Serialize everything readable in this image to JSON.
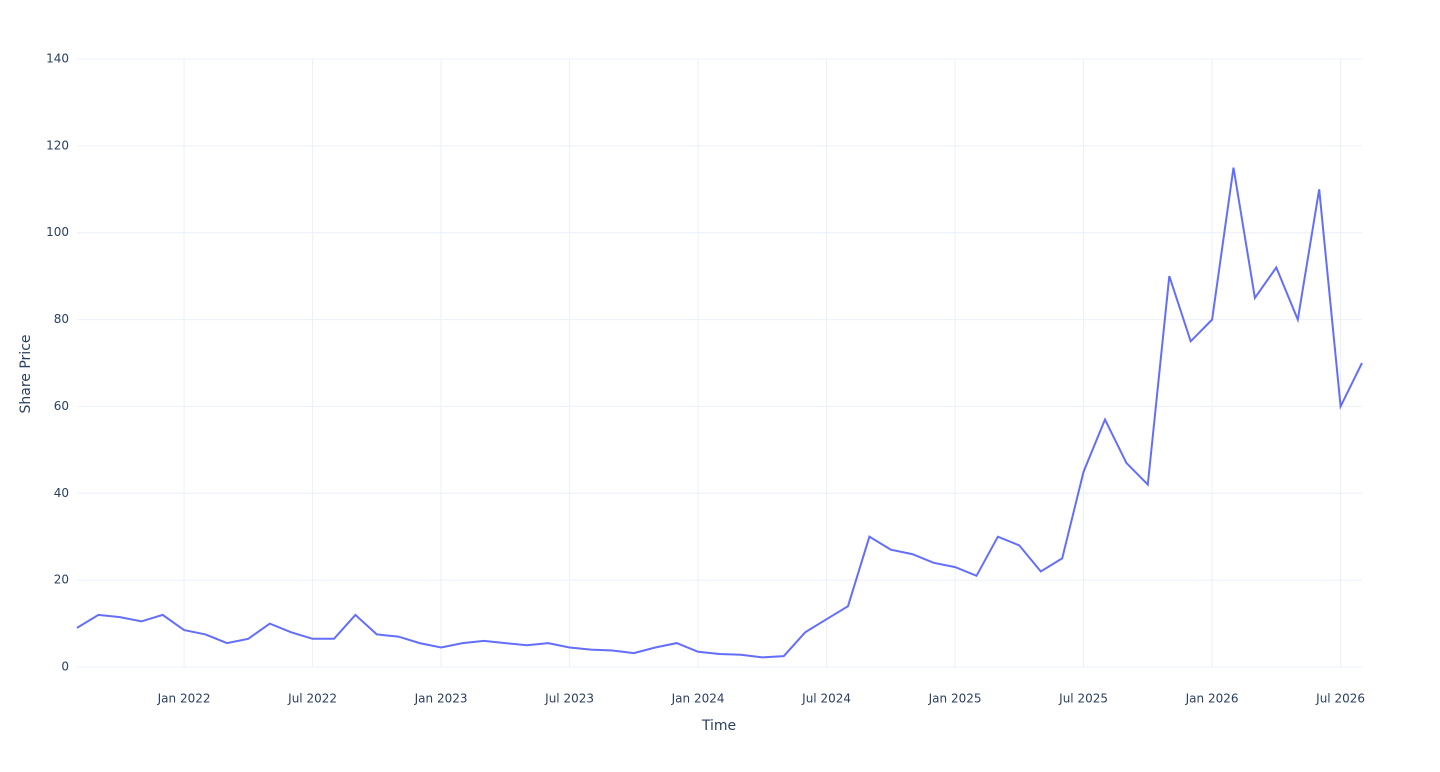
{
  "chart_data": {
    "type": "line",
    "x_label": "Time",
    "y_label": "Share Price",
    "x": [
      "2021-08",
      "2021-09",
      "2021-10",
      "2021-11",
      "2021-12",
      "2022-01",
      "2022-02",
      "2022-03",
      "2022-04",
      "2022-05",
      "2022-06",
      "2022-07",
      "2022-08",
      "2022-09",
      "2022-10",
      "2022-11",
      "2022-12",
      "2023-01",
      "2023-02",
      "2023-03",
      "2023-04",
      "2023-05",
      "2023-06",
      "2023-07",
      "2023-08",
      "2023-09",
      "2023-10",
      "2023-11",
      "2023-12",
      "2024-01",
      "2024-02",
      "2024-03",
      "2024-04",
      "2024-05",
      "2024-06",
      "2024-07",
      "2024-08",
      "2024-09",
      "2024-10",
      "2024-11",
      "2024-12",
      "2025-01",
      "2025-02",
      "2025-03",
      "2025-04",
      "2025-05",
      "2025-06",
      "2025-07",
      "2025-08",
      "2025-09",
      "2025-10",
      "2025-11",
      "2025-12",
      "2026-01",
      "2026-02",
      "2026-03",
      "2026-04",
      "2026-05",
      "2026-06",
      "2026-07",
      "2026-08"
    ],
    "series": [
      {
        "color": "#636efa",
        "values": [
          9,
          12,
          11.5,
          10.5,
          12,
          8.5,
          7.5,
          5.5,
          6.5,
          10,
          8,
          6.5,
          6.5,
          12,
          7.5,
          7,
          5.5,
          4.5,
          5.5,
          6,
          5.5,
          5,
          5.5,
          4.5,
          4,
          3.8,
          3.2,
          4.5,
          5.5,
          3.5,
          3,
          2.8,
          2.2,
          2.5,
          8,
          11,
          14,
          30,
          27,
          26,
          24,
          23,
          21,
          30,
          28,
          22,
          25,
          45,
          57,
          47,
          42,
          90,
          75,
          80,
          115,
          85,
          92,
          80,
          110,
          60,
          70
        ]
      }
    ],
    "xlim": [
      "2021-08",
      "2026-08"
    ],
    "xticks": [
      {
        "value": "2022-01",
        "label": "Jan 2022"
      },
      {
        "value": "2022-07",
        "label": "Jul 2022"
      },
      {
        "value": "2023-01",
        "label": "Jan 2023"
      },
      {
        "value": "2023-07",
        "label": "Jul 2023"
      },
      {
        "value": "2024-01",
        "label": "Jan 2024"
      },
      {
        "value": "2024-07",
        "label": "Jul 2024"
      },
      {
        "value": "2025-01",
        "label": "Jan 2025"
      },
      {
        "value": "2025-07",
        "label": "Jul 2025"
      },
      {
        "value": "2026-01",
        "label": "Jan 2026"
      },
      {
        "value": "2026-07",
        "label": "Jul 2026"
      }
    ],
    "ylim": [
      0,
      140
    ],
    "yticks": [
      0,
      20,
      40,
      60,
      80,
      100,
      120,
      140
    ],
    "grid": true
  }
}
